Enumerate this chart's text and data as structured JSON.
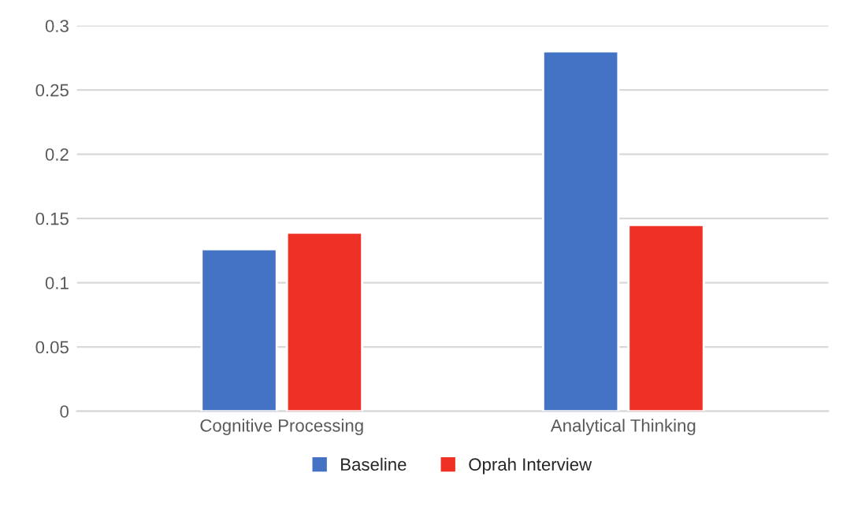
{
  "chart_data": {
    "type": "bar",
    "categories": [
      "Cognitive Processing",
      "Analytical Thinking"
    ],
    "series": [
      {
        "name": "Baseline",
        "color": "#4472c4",
        "values": [
          0.126,
          0.28
        ]
      },
      {
        "name": "Oprah Interview",
        "color": "#ee3124",
        "values": [
          0.139,
          0.145
        ]
      }
    ],
    "ylim": [
      0,
      0.3
    ],
    "yticks": [
      {
        "value": 0,
        "label": "0"
      },
      {
        "value": 0.05,
        "label": "0.05"
      },
      {
        "value": 0.1,
        "label": "0.1"
      },
      {
        "value": 0.15,
        "label": "0.15"
      },
      {
        "value": 0.2,
        "label": "0.2"
      },
      {
        "value": 0.25,
        "label": "0.25"
      },
      {
        "value": 0.3,
        "label": "0.3"
      }
    ],
    "grid": "y",
    "legend": "bottom"
  }
}
